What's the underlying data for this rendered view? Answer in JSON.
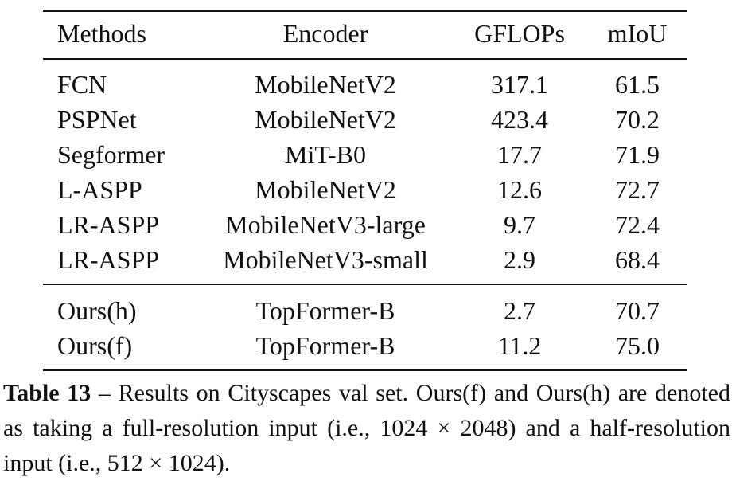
{
  "table": {
    "headers": [
      "Methods",
      "Encoder",
      "GFLOPs",
      "mIoU"
    ],
    "group1": [
      {
        "method": "FCN",
        "encoder": "MobileNetV2",
        "gflops": "317.1",
        "miou": "61.5"
      },
      {
        "method": "PSPNet",
        "encoder": "MobileNetV2",
        "gflops": "423.4",
        "miou": "70.2"
      },
      {
        "method": "Segformer",
        "encoder": "MiT-B0",
        "gflops": "17.7",
        "miou": "71.9"
      },
      {
        "method": "L-ASPP",
        "encoder": "MobileNetV2",
        "gflops": "12.6",
        "miou": "72.7"
      },
      {
        "method": "LR-ASPP",
        "encoder": "MobileNetV3-large",
        "gflops": "9.7",
        "miou": "72.4"
      },
      {
        "method": "LR-ASPP",
        "encoder": "MobileNetV3-small",
        "gflops": "2.9",
        "miou": "68.4"
      }
    ],
    "group2": [
      {
        "method": "Ours(h)",
        "encoder": "TopFormer-B",
        "gflops": "2.7",
        "miou": "70.7"
      },
      {
        "method": "Ours(f)",
        "encoder": "TopFormer-B",
        "gflops": "11.2",
        "miou": "75.0"
      }
    ]
  },
  "caption": {
    "label": "Table 13",
    "text": " – Results on Cityscapes val set. Ours(f) and Ours(h) are denoted as taking a full-resolution input (i.e., 1024 × 2048) and a half-resolution input (i.e., 512 × 1024)."
  }
}
